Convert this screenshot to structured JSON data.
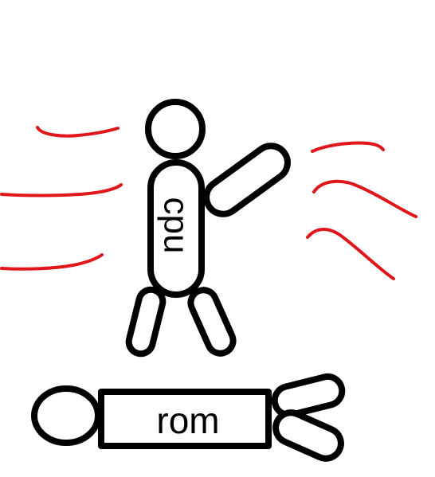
{
  "figures": {
    "standing": {
      "label": "cpu"
    },
    "lying": {
      "label": "rom"
    }
  },
  "colors": {
    "outline": "#000000",
    "motion_lines": "#e0161b",
    "background": "#ffffff"
  }
}
